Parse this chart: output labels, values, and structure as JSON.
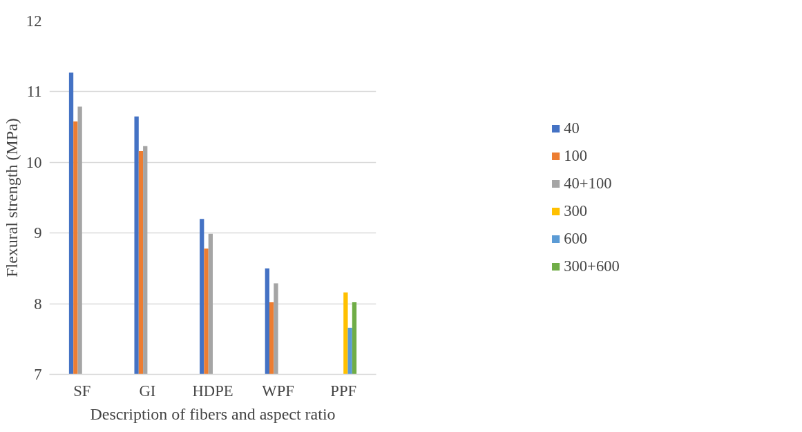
{
  "chart_data": {
    "type": "bar",
    "xlabel": "Description of fibers and aspect ratio",
    "ylabel": "Flexural strength (MPa)",
    "categories": [
      "SF",
      "GI",
      "HDPE",
      "WPF",
      "PPF"
    ],
    "series": [
      {
        "name": "40",
        "color": "#4472c4",
        "values": [
          11.27,
          10.65,
          9.2,
          8.5,
          null
        ]
      },
      {
        "name": "100",
        "color": "#ed7d31",
        "values": [
          10.58,
          10.16,
          8.78,
          8.02,
          null
        ]
      },
      {
        "name": "40+100",
        "color": "#a5a5a5",
        "values": [
          10.79,
          10.23,
          8.99,
          8.29,
          null
        ]
      },
      {
        "name": "300",
        "color": "#ffc000",
        "values": [
          null,
          null,
          null,
          null,
          8.16
        ]
      },
      {
        "name": "600",
        "color": "#5b9bd5",
        "values": [
          null,
          null,
          null,
          null,
          7.66
        ]
      },
      {
        "name": "300+600",
        "color": "#70ad47",
        "values": [
          null,
          null,
          null,
          null,
          8.02
        ]
      }
    ],
    "ylim": [
      7,
      12
    ],
    "yticks": [
      7,
      8,
      9,
      10,
      11,
      12
    ],
    "grid": "y",
    "legend": "right"
  }
}
